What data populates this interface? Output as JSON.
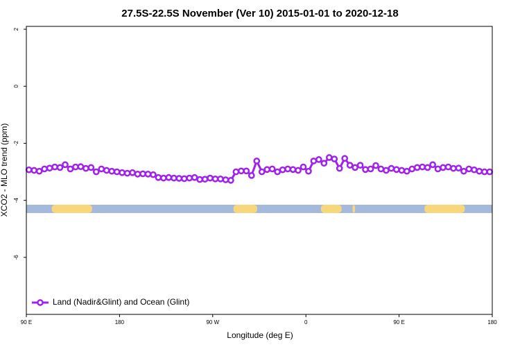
{
  "chart_data": {
    "type": "line",
    "title": "27.5S-22.5S November (Ver 10)   2015-01-01 to 2020-12-18",
    "xlabel": "Longitude (deg E)",
    "ylabel": "XCO2 - MLO trend (ppm)",
    "xlim": [
      90,
      540
    ],
    "ylim": [
      -8,
      2.1
    ],
    "xticks": [
      {
        "value": 90,
        "label": "90 E"
      },
      180,
      {
        "value": 270,
        "label": "90 W"
      },
      {
        "value": 360,
        "label": "0"
      },
      {
        "value": 450,
        "label": "90 E"
      },
      {
        "value": 540,
        "label": "180"
      }
    ],
    "yticks": [
      -6,
      -4,
      -2,
      0,
      2
    ],
    "legend": "bottom-left",
    "x": [
      92.5,
      97.5,
      102.5,
      107.5,
      112.5,
      117.5,
      122.5,
      127.5,
      132.5,
      137.5,
      142.5,
      147.5,
      152.5,
      157.5,
      162.5,
      167.5,
      172.5,
      177.5,
      182.5,
      187.5,
      192.5,
      197.5,
      202.5,
      207.5,
      212.5,
      217.5,
      222.5,
      227.5,
      232.5,
      237.5,
      242.5,
      247.5,
      252.5,
      257.5,
      262.5,
      267.5,
      272.5,
      277.5,
      282.5,
      287.5,
      292.5,
      297.5,
      302.5,
      307.5,
      312.5,
      317.5,
      322.5,
      327.5,
      332.5,
      337.5,
      342.5,
      347.5,
      352.5,
      357.5,
      362.5,
      367.5,
      372.5,
      377.5,
      382.5,
      387.5,
      392.5,
      397.5,
      402.5,
      407.5,
      412.5,
      417.5,
      422.5,
      427.5,
      432.5,
      437.5,
      442.5,
      447.5,
      452.5,
      457.5,
      462.5,
      467.5,
      472.5,
      477.5,
      482.5,
      487.5,
      492.5,
      497.5,
      502.5,
      507.5,
      512.5,
      517.5,
      522.5,
      527.5,
      532.5,
      537.5
    ],
    "series": [
      {
        "name": "Land (Nadir&Glint) and Ocean (Glint)",
        "color": "#a020f0",
        "values": [
          -2.93,
          -2.95,
          -2.98,
          -2.9,
          -2.87,
          -2.83,
          -2.85,
          -2.75,
          -2.9,
          -2.83,
          -2.82,
          -2.88,
          -2.85,
          -3.0,
          -2.9,
          -2.95,
          -2.98,
          -3.0,
          -3.03,
          -3.05,
          -3.03,
          -3.08,
          -3.07,
          -3.08,
          -3.1,
          -3.2,
          -3.22,
          -3.2,
          -3.22,
          -3.23,
          -3.24,
          -3.22,
          -3.2,
          -3.27,
          -3.26,
          -3.22,
          -3.25,
          -3.25,
          -3.28,
          -3.3,
          -3.0,
          -2.97,
          -2.97,
          -3.13,
          -2.62,
          -3.0,
          -2.92,
          -2.9,
          -3.0,
          -2.93,
          -2.9,
          -2.92,
          -2.95,
          -2.83,
          -2.98,
          -2.62,
          -2.57,
          -2.7,
          -2.5,
          -2.55,
          -2.88,
          -2.53,
          -2.77,
          -2.85,
          -2.77,
          -2.92,
          -2.9,
          -2.78,
          -2.9,
          -2.95,
          -2.88,
          -2.92,
          -2.95,
          -2.98,
          -2.9,
          -2.85,
          -2.83,
          -2.85,
          -2.75,
          -2.9,
          -2.85,
          -2.83,
          -2.88,
          -2.87,
          -2.98,
          -2.9,
          -2.93,
          -2.98,
          -3.0,
          -3.0
        ]
      }
    ],
    "strip_value": -4.3,
    "ocean_color": "#a4b9dc",
    "land_color": "#f8d77c",
    "land_segments": [
      [
        114.5,
        153.5
      ],
      [
        290,
        313
      ],
      [
        374.5,
        394.5
      ],
      [
        405,
        407.5
      ],
      [
        474.5,
        513.5
      ]
    ]
  }
}
